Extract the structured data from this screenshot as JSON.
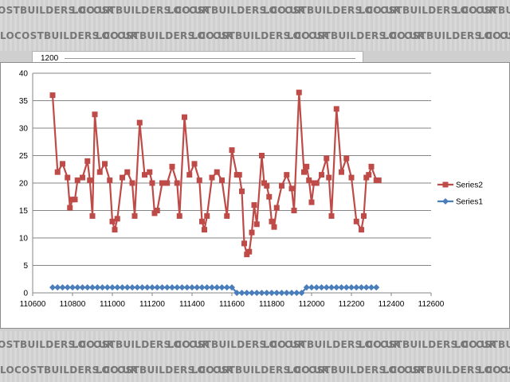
{
  "watermark": {
    "text": "LOCOSTBUILDERS.CO.UK"
  },
  "back_chart": {
    "tick_label": "1200"
  },
  "colors": {
    "series2": "#be4b48",
    "series1": "#4a7ebb",
    "grid": "#868686"
  },
  "chart_data": {
    "type": "scatter",
    "title": "",
    "xlabel": "",
    "ylabel": "",
    "xlim": [
      110600,
      112600
    ],
    "ylim": [
      0,
      40
    ],
    "x_ticks": [
      "110600",
      "110800",
      "111000",
      "111200",
      "111400",
      "111600",
      "111800",
      "112000",
      "112200",
      "112400",
      "112600"
    ],
    "y_ticks": [
      "0",
      "5",
      "10",
      "15",
      "20",
      "25",
      "30",
      "35",
      "40"
    ],
    "grid": "horizontal",
    "legend_position": "right",
    "legend": [
      "Series2",
      "Series1"
    ],
    "series": [
      {
        "name": "Series2",
        "marker": "square",
        "x": [
          110700,
          110725,
          110750,
          110775,
          110787,
          110800,
          110812,
          110825,
          110850,
          110875,
          110887,
          110900,
          110912,
          110937,
          110962,
          110987,
          111000,
          111012,
          111025,
          111050,
          111075,
          111100,
          111112,
          111137,
          111162,
          111187,
          111200,
          111212,
          111225,
          111250,
          111275,
          111300,
          111325,
          111337,
          111362,
          111387,
          111412,
          111437,
          111450,
          111462,
          111475,
          111500,
          111525,
          111550,
          111575,
          111600,
          111625,
          111637,
          111650,
          111662,
          111675,
          111687,
          111700,
          111712,
          111725,
          111750,
          111762,
          111775,
          111787,
          111800,
          111812,
          111825,
          111850,
          111875,
          111900,
          111912,
          111937,
          111962,
          111975,
          111987,
          112000,
          112012,
          112025,
          112050,
          112075,
          112087,
          112100,
          112125,
          112150,
          112175,
          112200,
          112225,
          112250,
          112262,
          112275,
          112287,
          112300,
          112325,
          112337
        ],
        "y": [
          36,
          22,
          23.5,
          21,
          15.5,
          17,
          17,
          20.5,
          21,
          24,
          20.5,
          14,
          32.5,
          22,
          23.5,
          20.5,
          13,
          11.5,
          13.5,
          21,
          22,
          20,
          14,
          31,
          21.5,
          22,
          20,
          14.5,
          15,
          20,
          20,
          23,
          20,
          14,
          32,
          21.5,
          23.5,
          20.5,
          13,
          11.5,
          14,
          21,
          22,
          20.5,
          14,
          26,
          21.5,
          21.5,
          18.5,
          9,
          7,
          7.5,
          11,
          16,
          12.5,
          25,
          20,
          19.5,
          17.5,
          13,
          12,
          15.5,
          19.5,
          21.5,
          19,
          15,
          36.5,
          22,
          23,
          20.5,
          16.5,
          20,
          20,
          21.5,
          24.5,
          21,
          14,
          33.5,
          22,
          24.5,
          21,
          13,
          11.5,
          14,
          21,
          21.5,
          23,
          20.5,
          20.5
        ]
      },
      {
        "name": "Series1",
        "marker": "diamond",
        "x": [
          110700,
          110725,
          110750,
          110775,
          110800,
          110825,
          110850,
          110875,
          110900,
          110925,
          110950,
          110975,
          111000,
          111025,
          111050,
          111075,
          111100,
          111125,
          111150,
          111175,
          111200,
          111225,
          111250,
          111275,
          111300,
          111325,
          111350,
          111375,
          111400,
          111425,
          111450,
          111475,
          111500,
          111525,
          111550,
          111575,
          111600,
          111625,
          111650,
          111675,
          111700,
          111725,
          111750,
          111775,
          111800,
          111825,
          111850,
          111875,
          111900,
          111925,
          111950,
          111975,
          112000,
          112025,
          112050,
          112075,
          112100,
          112125,
          112150,
          112175,
          112200,
          112225,
          112250,
          112275,
          112300,
          112325
        ],
        "y": [
          1,
          1,
          1,
          1,
          1,
          1,
          1,
          1,
          1,
          1,
          1,
          1,
          1,
          1,
          1,
          1,
          1,
          1,
          1,
          1,
          1,
          1,
          1,
          1,
          1,
          1,
          1,
          1,
          1,
          1,
          1,
          1,
          1,
          1,
          1,
          1,
          1,
          0,
          0,
          0,
          0,
          0,
          0,
          0,
          0,
          0,
          0,
          0,
          0,
          0,
          0,
          1,
          1,
          1,
          1,
          1,
          1,
          1,
          1,
          1,
          1,
          1,
          1,
          1,
          1,
          1
        ]
      }
    ]
  }
}
